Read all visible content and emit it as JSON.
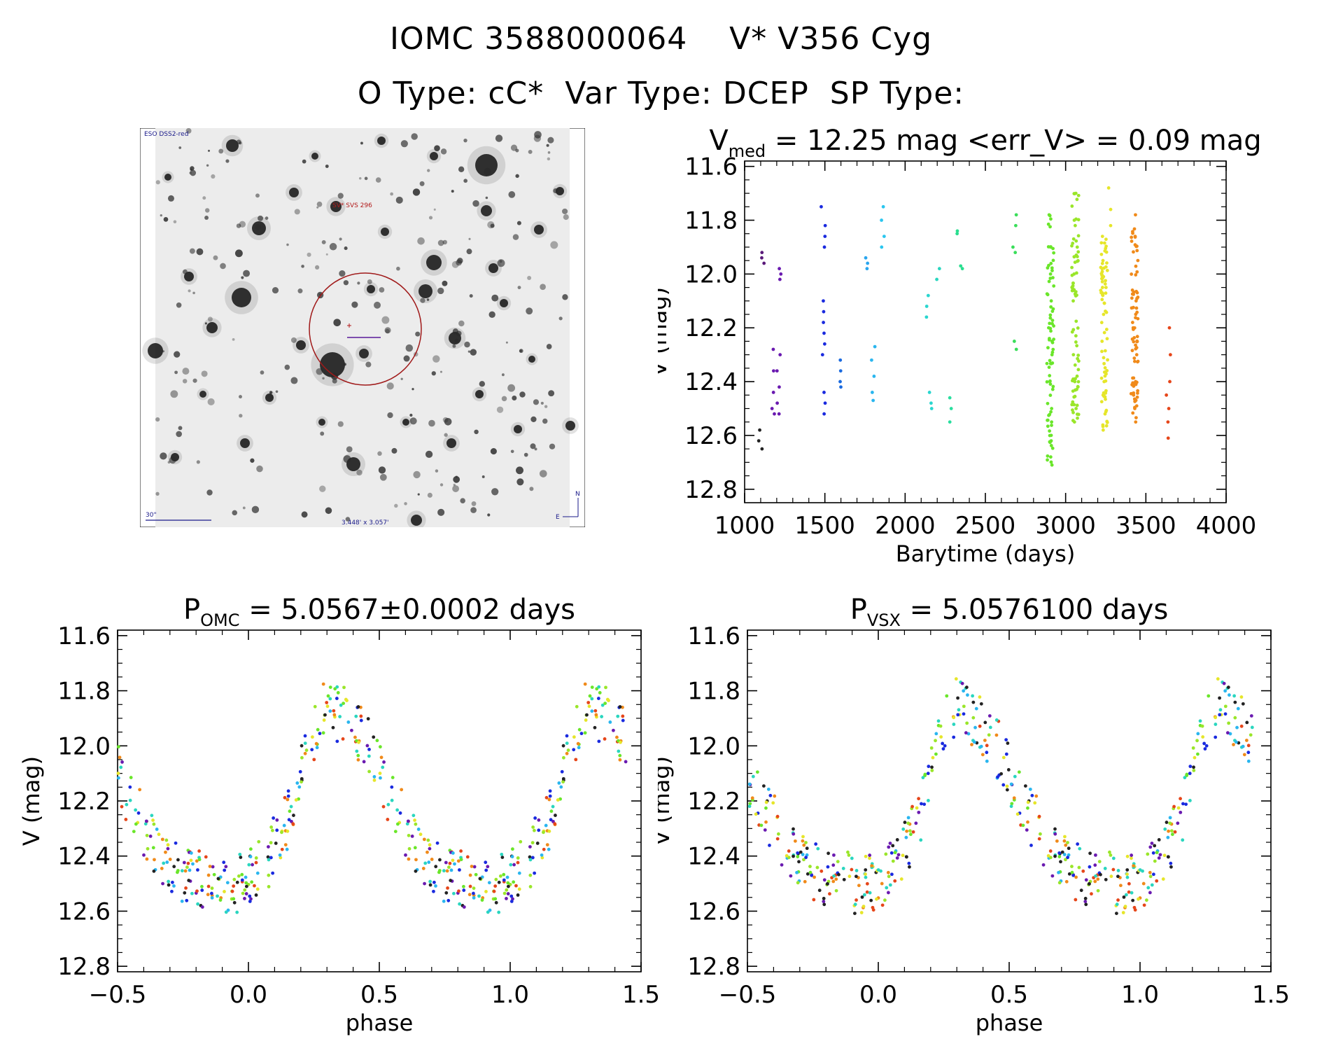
{
  "header": {
    "line1": "IOMC 3588000064    V* V356 Cyg",
    "line2": "O Type: cC*  Var Type: DCEP  SP Type:"
  },
  "finder_chart": {
    "survey_label": "ESO DSS2-red",
    "target_label": "SV* SVS 296",
    "scale_label": "30\"",
    "fov_label": "3.448' x 3.057'",
    "compass_north": "N",
    "compass_east": "E"
  },
  "chart_data": [
    {
      "type": "scatter",
      "id": "lightcurve",
      "title_main": "V",
      "title_sub": "med",
      "title_rest": " = 12.25 mag <err_V> = 0.09 mag",
      "xlabel": "Barytime (days)",
      "ylabel": "V (mag)",
      "xlim": [
        1000,
        4000
      ],
      "ylim": [
        12.85,
        11.58
      ],
      "xticks": [
        "1000",
        "1500",
        "2000",
        "2500",
        "3000",
        "3500",
        "4000"
      ],
      "yticks": [
        "11.6",
        "11.8",
        "12.0",
        "12.2",
        "12.4",
        "12.6",
        "12.8"
      ],
      "segments": [
        {
          "t": 1100,
          "v": [
            12.58,
            12.62,
            12.65
          ],
          "color": "#222222"
        },
        {
          "t": 1110,
          "v": [
            11.92,
            11.94,
            11.96
          ],
          "color": "#5a1a7a"
        },
        {
          "t": 1175,
          "v": [
            12.28,
            12.36,
            12.44,
            12.5,
            12.52
          ],
          "color": "#6a1ab0"
        },
        {
          "t": 1215,
          "v": [
            12.3,
            12.36,
            12.42,
            12.48,
            12.52
          ],
          "color": "#6a1ab0"
        },
        {
          "t": 1220,
          "v": [
            11.98,
            12.0,
            12.02
          ],
          "color": "#6a1ab0"
        },
        {
          "t": 1490,
          "v": [
            11.75,
            11.82,
            11.86,
            11.9,
            12.1,
            12.14,
            12.18,
            12.22,
            12.26,
            12.3,
            12.44,
            12.48,
            12.52
          ],
          "color": "#1a2adf"
        },
        {
          "t": 1590,
          "v": [
            12.32,
            12.36,
            12.4,
            12.42
          ],
          "color": "#1a6adf"
        },
        {
          "t": 1765,
          "v": [
            11.94,
            11.96,
            11.98
          ],
          "color": "#2aa6ef"
        },
        {
          "t": 1800,
          "v": [
            12.27,
            12.32,
            12.38,
            12.44,
            12.47
          ],
          "color": "#2ab6ef"
        },
        {
          "t": 1865,
          "v": [
            11.75,
            11.8,
            11.86,
            11.9
          ],
          "color": "#2ac6ef"
        },
        {
          "t": 2145,
          "v": [
            12.08,
            12.12,
            12.16
          ],
          "color": "#2ad6cf"
        },
        {
          "t": 2160,
          "v": [
            12.44,
            12.48,
            12.5
          ],
          "color": "#2ad6cf"
        },
        {
          "t": 2205,
          "v": [
            11.98,
            12.02
          ],
          "color": "#2ad6bf"
        },
        {
          "t": 2290,
          "v": [
            12.46,
            12.5,
            12.55
          ],
          "color": "#2ade9f"
        },
        {
          "t": 2315,
          "v": [
            11.84,
            11.85
          ],
          "color": "#2ade8f"
        },
        {
          "t": 2345,
          "v": [
            11.97,
            11.98
          ],
          "color": "#2ade8f"
        },
        {
          "t": 2680,
          "v": [
            11.78,
            11.82,
            11.9,
            11.92,
            12.25,
            12.28
          ],
          "color": "#3ade5a"
        },
        {
          "t": 2905,
          "v": [
            11.78,
            11.9,
            12.0,
            12.1,
            12.2,
            12.3,
            12.4,
            12.5,
            12.55,
            12.62,
            12.68,
            12.71
          ],
          "color": "#6ae62a",
          "dense": true
        },
        {
          "t": 3060,
          "v": [
            11.7,
            11.8,
            11.9,
            12.0,
            12.1,
            12.3,
            12.4,
            12.5,
            12.55
          ],
          "color": "#9ae62a",
          "dense": true
        },
        {
          "t": 3240,
          "v": [
            11.86,
            11.95,
            12.05,
            12.15,
            12.25,
            12.4,
            12.45,
            12.52,
            12.58
          ],
          "color": "#e6e62a",
          "dense": true
        },
        {
          "t": 3280,
          "v": [
            11.68,
            11.76,
            11.82
          ],
          "color": "#e6e62a"
        },
        {
          "t": 3430,
          "v": [
            11.78,
            11.86,
            12.1,
            12.2,
            12.3,
            12.4,
            12.45,
            12.5,
            12.55
          ],
          "color": "#f08a1a",
          "dense": true
        },
        {
          "t": 3640,
          "v": [
            12.2,
            12.3,
            12.4,
            12.45,
            12.5,
            12.55,
            12.61
          ],
          "color": "#e6461a"
        }
      ]
    },
    {
      "type": "scatter",
      "id": "phase_omc",
      "title_main": "P",
      "title_sub": "OMC",
      "title_rest": " = 5.0567±0.0002 days",
      "xlabel": "phase",
      "ylabel": "V (mag)",
      "xlim": [
        -0.5,
        1.5
      ],
      "ylim": [
        12.82,
        11.58
      ],
      "xticks": [
        "−0.5",
        "0.0",
        "0.5",
        "1.0",
        "1.5"
      ],
      "yticks": [
        "11.6",
        "11.8",
        "12.0",
        "12.2",
        "12.4",
        "12.6",
        "12.8"
      ],
      "curve": {
        "phase": [
          0.0,
          0.08,
          0.16,
          0.22,
          0.3,
          0.38,
          0.46,
          0.52,
          0.58,
          0.66,
          0.74,
          0.82,
          0.9,
          0.96,
          1.0
        ],
        "mag": [
          12.48,
          12.4,
          12.25,
          12.0,
          11.85,
          11.9,
          12.0,
          12.15,
          12.25,
          12.4,
          12.46,
          12.49,
          12.5,
          12.5,
          12.48
        ]
      }
    },
    {
      "type": "scatter",
      "id": "phase_vsx",
      "title_main": "P",
      "title_sub": "VSX",
      "title_rest": " = 5.0576100 days",
      "xlabel": "phase",
      "ylabel": "V (mag)",
      "xlim": [
        -0.5,
        1.5
      ],
      "ylim": [
        12.82,
        11.58
      ],
      "xticks": [
        "−0.5",
        "0.0",
        "0.5",
        "1.0",
        "1.5"
      ],
      "yticks": [
        "11.6",
        "11.8",
        "12.0",
        "12.2",
        "12.4",
        "12.6",
        "12.8"
      ],
      "curve": {
        "phase": [
          0.0,
          0.08,
          0.16,
          0.22,
          0.3,
          0.38,
          0.46,
          0.52,
          0.58,
          0.66,
          0.74,
          0.82,
          0.9,
          0.96,
          1.0
        ],
        "mag": [
          12.5,
          12.42,
          12.25,
          12.0,
          11.85,
          11.92,
          12.02,
          12.15,
          12.25,
          12.38,
          12.45,
          12.48,
          12.5,
          12.5,
          12.5
        ]
      }
    }
  ],
  "palette": [
    "#222222",
    "#6a1ab0",
    "#1a2adf",
    "#2ab6ef",
    "#2ad6bf",
    "#6ae62a",
    "#9ae62a",
    "#e6e62a",
    "#f08a1a",
    "#e6461a"
  ]
}
